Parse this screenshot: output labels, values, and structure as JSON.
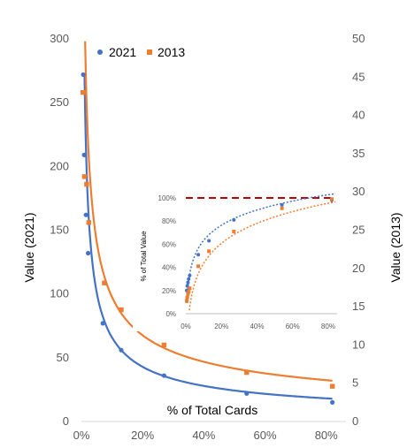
{
  "chart_data": [
    {
      "type": "scatter",
      "xlabel": "% of Total Cards",
      "ylabel_left": "Value (2021)",
      "ylabel_right": "Value (2013)",
      "x_ticks": [
        "0%",
        "20%",
        "40%",
        "60%",
        "80%"
      ],
      "y_left_ticks": [
        "0",
        "50",
        "100",
        "150",
        "200",
        "250",
        "300"
      ],
      "y_right_ticks": [
        "0",
        "5",
        "10",
        "15",
        "20",
        "25",
        "30",
        "35",
        "40",
        "45",
        "50"
      ],
      "xlim": [
        0,
        0.85
      ],
      "ylim_left": [
        0,
        300
      ],
      "ylim_right": [
        0,
        50
      ],
      "grid": false,
      "legend_position": "top-left",
      "series": [
        {
          "name": "2021",
          "axis": "left",
          "color": "#4472C4",
          "marker": "circle",
          "x": [
            0.006,
            0.009,
            0.015,
            0.022,
            0.07,
            0.13,
            0.27,
            0.54,
            0.82
          ],
          "y": [
            272,
            209,
            162,
            132,
            77,
            56,
            36,
            22,
            15
          ]
        },
        {
          "name": "2013",
          "axis": "right",
          "color": "#ED7D31",
          "marker": "square",
          "x": [
            0.005,
            0.01,
            0.017,
            0.024,
            0.075,
            0.13,
            0.27,
            0.54,
            0.82
          ],
          "y": [
            43,
            32,
            31,
            26,
            18.1,
            14.6,
            10,
            6.4,
            4.6
          ]
        }
      ],
      "trendlines": [
        {
          "series": "2021",
          "axis": "left",
          "color": "#4472C4",
          "a": 15.8,
          "b": -0.62
        },
        {
          "series": "2013",
          "axis": "right",
          "color": "#ED7D31",
          "a": 4.8,
          "b": -0.53
        }
      ]
    },
    {
      "type": "scatter",
      "position": "inset",
      "ylabel": "% of Total Value",
      "x_ticks": [
        "0%",
        "20%",
        "40%",
        "60%",
        "80%"
      ],
      "y_ticks": [
        "0%",
        "20%",
        "40%",
        "60%",
        "80%",
        "100%"
      ],
      "xlim": [
        0,
        0.85
      ],
      "ylim": [
        0,
        1.0
      ],
      "reference_line": {
        "y": 1.0,
        "color": "#C00000",
        "style": "dashed"
      },
      "series": [
        {
          "name": "2021",
          "color": "#4472C4",
          "marker": "circle",
          "x": [
            0.005,
            0.008,
            0.012,
            0.016,
            0.022,
            0.07,
            0.13,
            0.27,
            0.54,
            0.82
          ],
          "y": [
            0.2,
            0.24,
            0.27,
            0.3,
            0.33,
            0.51,
            0.63,
            0.81,
            0.94,
            0.98
          ]
        },
        {
          "name": "2013",
          "color": "#ED7D31",
          "marker": "square",
          "x": [
            0.005,
            0.008,
            0.012,
            0.016,
            0.022,
            0.07,
            0.13,
            0.27,
            0.54,
            0.82
          ],
          "y": [
            0.11,
            0.14,
            0.17,
            0.19,
            0.22,
            0.41,
            0.54,
            0.71,
            0.91,
            0.99
          ]
        }
      ],
      "trendlines": [
        {
          "series": "2021",
          "color": "#4472C4",
          "style": "dotted",
          "a": 1.07,
          "b": 0.19
        },
        {
          "series": "2013",
          "color": "#ED7D31",
          "style": "dotted",
          "a": 1.01,
          "b": 0.25
        }
      ]
    }
  ]
}
